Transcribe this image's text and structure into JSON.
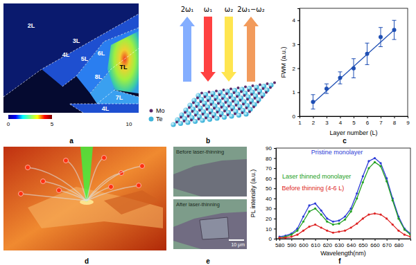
{
  "panels": {
    "labels": [
      "a",
      "b",
      "c",
      "d",
      "e",
      "f"
    ]
  },
  "map": {
    "layer_labels": [
      "2L",
      "3L",
      "4L",
      "5L",
      "6L",
      "TL",
      "8L",
      "7L",
      "4L"
    ],
    "colorbar": {
      "range": [
        0,
        5
      ],
      "ticks": [
        0,
        5
      ]
    },
    "scale_bar": "10"
  },
  "schematic": {
    "beams": [
      "2ω₁",
      "ω₁",
      "ω₂",
      "2ω₁−ω₂"
    ],
    "atoms": [
      "Mo",
      "Te"
    ]
  },
  "micrographs": {
    "titles": [
      "Before laser-thinning",
      "After laser-thinning"
    ],
    "scale_bar": "10 μm"
  },
  "chart_data": [
    {
      "type": "scatter",
      "xlabel": "Layer number (L)",
      "ylabel": "FWM (a.u.)",
      "xlim": [
        1,
        9
      ],
      "xticks": [
        1,
        2,
        3,
        4,
        5,
        6,
        7,
        8,
        9
      ],
      "ylim": [
        0,
        4.5
      ],
      "yticks": [
        0,
        1,
        2,
        3,
        4
      ],
      "grid": false,
      "series": [
        {
          "type": "scatter",
          "color": "#1f4fb4",
          "marker": "circle",
          "x": [
            2,
            3,
            4,
            5,
            6,
            7,
            8
          ],
          "values": [
            0.6,
            1.15,
            1.6,
            2.0,
            2.6,
            3.3,
            3.6
          ],
          "errors": [
            0.3,
            0.2,
            0.25,
            0.4,
            0.45,
            0.4,
            0.4
          ]
        },
        {
          "type": "line",
          "color": "#1f4fb4",
          "line_style": "solid",
          "x": [
            2,
            8
          ],
          "values": [
            0.55,
            3.6
          ]
        }
      ]
    },
    {
      "type": "line",
      "xlabel": "Wavelength(nm)",
      "ylabel": "PL intensity (a.u.)",
      "xlim": [
        577,
        690
      ],
      "xticks": [
        580,
        590,
        600,
        610,
        620,
        630,
        640,
        650,
        660,
        670,
        680
      ],
      "ylim": [
        0,
        90
      ],
      "yticks": [
        0,
        10,
        20,
        30,
        40,
        50,
        60,
        70,
        80,
        90
      ],
      "grid": false,
      "series": [
        {
          "name": "Pristine monolayer",
          "type": "line",
          "color": "#2b3bd6",
          "marker": "circle",
          "line_style": "solid",
          "x": [
            580,
            585,
            590,
            595,
            600,
            605,
            610,
            615,
            620,
            625,
            630,
            635,
            640,
            645,
            650,
            655,
            660,
            665,
            670,
            675,
            680,
            685,
            690
          ],
          "values": [
            2,
            3,
            5,
            10,
            22,
            33,
            35,
            28,
            20,
            17,
            18,
            22,
            30,
            45,
            62,
            77,
            80,
            75,
            60,
            40,
            22,
            10,
            5
          ]
        },
        {
          "name": "Laser thinned monolayer",
          "type": "line",
          "color": "#22a022",
          "marker": "circle",
          "line_style": "solid",
          "x": [
            580,
            585,
            590,
            595,
            600,
            605,
            610,
            615,
            620,
            625,
            630,
            635,
            640,
            645,
            650,
            655,
            660,
            665,
            670,
            675,
            680,
            685,
            690
          ],
          "values": [
            1,
            2,
            4,
            8,
            17,
            27,
            30,
            24,
            17,
            14,
            15,
            19,
            27,
            40,
            56,
            70,
            76,
            72,
            57,
            38,
            20,
            9,
            4
          ]
        },
        {
          "name": "Before thinning (4-6 L)",
          "type": "line",
          "color": "#dd2222",
          "marker": "circle",
          "line_style": "solid",
          "x": [
            580,
            585,
            590,
            595,
            600,
            605,
            610,
            615,
            620,
            625,
            630,
            635,
            640,
            645,
            650,
            655,
            660,
            665,
            670,
            675,
            680,
            685,
            690
          ],
          "values": [
            1,
            1,
            2,
            4,
            8,
            12,
            14,
            11,
            8,
            6,
            7,
            8,
            11,
            15,
            20,
            24,
            25,
            24,
            20,
            14,
            8,
            4,
            2
          ]
        }
      ]
    }
  ]
}
